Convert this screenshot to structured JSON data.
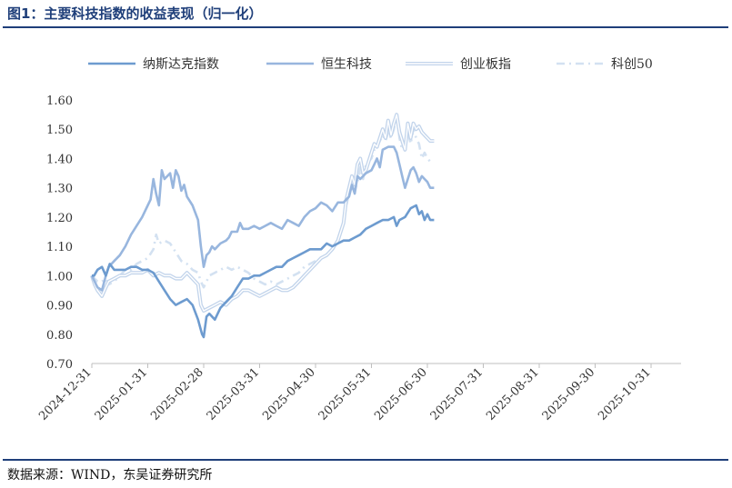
{
  "title": "图1：主要科技指数的收益表现（归一化）",
  "source": "数据来源：WIND，东吴证券研究所",
  "colors": {
    "title": "#1f3f7a",
    "nasdaq": "#6d9bcf",
    "hstech": "#98b6de",
    "chinext": "#c2d4eb",
    "star50": "#d3e1f1"
  },
  "chart_data": {
    "type": "line",
    "title": "",
    "xlabel": "",
    "ylabel": "",
    "ylim": [
      0.7,
      1.6
    ],
    "yticks": [
      "0.70",
      "0.80",
      "0.90",
      "1.00",
      "1.10",
      "1.20",
      "1.30",
      "1.40",
      "1.50",
      "1.60"
    ],
    "xticks": [
      "2024-12-31",
      "2025-01-31",
      "2025-02-28",
      "2025-03-31",
      "2025-04-30",
      "2025-05-31",
      "2025-06-30",
      "2025-07-31",
      "2025-08-31",
      "2025-09-30",
      "2025-10-31"
    ],
    "legend_position": "top",
    "series": [
      {
        "name": "纳斯达克指数",
        "style": "solid",
        "points": [
          [
            0,
            1.0
          ],
          [
            0.04,
            1.0
          ],
          [
            0.1,
            1.02
          ],
          [
            0.18,
            1.03
          ],
          [
            0.25,
            1.0
          ],
          [
            0.32,
            1.04
          ],
          [
            0.4,
            1.02
          ],
          [
            0.5,
            1.02
          ],
          [
            0.6,
            1.02
          ],
          [
            0.7,
            1.03
          ],
          [
            0.8,
            1.03
          ],
          [
            0.9,
            1.02
          ],
          [
            1.0,
            1.02
          ],
          [
            1.1,
            1.01
          ],
          [
            1.2,
            0.98
          ],
          [
            1.3,
            0.95
          ],
          [
            1.4,
            0.92
          ],
          [
            1.5,
            0.9
          ],
          [
            1.6,
            0.91
          ],
          [
            1.7,
            0.92
          ],
          [
            1.8,
            0.9
          ],
          [
            1.9,
            0.85
          ],
          [
            1.97,
            0.8
          ],
          [
            2.0,
            0.79
          ],
          [
            2.05,
            0.86
          ],
          [
            2.1,
            0.87
          ],
          [
            2.2,
            0.85
          ],
          [
            2.3,
            0.89
          ],
          [
            2.4,
            0.91
          ],
          [
            2.5,
            0.93
          ],
          [
            2.6,
            0.96
          ],
          [
            2.7,
            0.99
          ],
          [
            2.8,
            0.99
          ],
          [
            2.9,
            1.0
          ],
          [
            3.0,
            1.0
          ],
          [
            3.1,
            1.01
          ],
          [
            3.2,
            1.02
          ],
          [
            3.3,
            1.03
          ],
          [
            3.4,
            1.03
          ],
          [
            3.5,
            1.05
          ],
          [
            3.6,
            1.06
          ],
          [
            3.7,
            1.07
          ],
          [
            3.8,
            1.08
          ],
          [
            3.9,
            1.09
          ],
          [
            4.0,
            1.09
          ],
          [
            4.1,
            1.09
          ],
          [
            4.2,
            1.11
          ],
          [
            4.3,
            1.1
          ],
          [
            4.4,
            1.11
          ],
          [
            4.5,
            1.12
          ],
          [
            4.6,
            1.12
          ],
          [
            4.7,
            1.13
          ],
          [
            4.8,
            1.14
          ],
          [
            4.9,
            1.16
          ],
          [
            5.0,
            1.17
          ],
          [
            5.1,
            1.18
          ],
          [
            5.2,
            1.19
          ],
          [
            5.3,
            1.19
          ],
          [
            5.4,
            1.2
          ],
          [
            5.45,
            1.17
          ],
          [
            5.5,
            1.19
          ],
          [
            5.6,
            1.2
          ],
          [
            5.7,
            1.23
          ],
          [
            5.8,
            1.24
          ],
          [
            5.85,
            1.21
          ],
          [
            5.9,
            1.22
          ],
          [
            5.95,
            1.19
          ],
          [
            6.0,
            1.21
          ],
          [
            6.05,
            1.19
          ],
          [
            6.12,
            1.19
          ]
        ]
      },
      {
        "name": "恒生科技",
        "style": "solid",
        "points": [
          [
            0,
            1.0
          ],
          [
            0.05,
            0.98
          ],
          [
            0.1,
            0.96
          ],
          [
            0.18,
            0.95
          ],
          [
            0.25,
            1.0
          ],
          [
            0.3,
            1.03
          ],
          [
            0.4,
            1.05
          ],
          [
            0.5,
            1.07
          ],
          [
            0.6,
            1.1
          ],
          [
            0.7,
            1.14
          ],
          [
            0.8,
            1.17
          ],
          [
            0.9,
            1.2
          ],
          [
            1.0,
            1.24
          ],
          [
            1.05,
            1.26
          ],
          [
            1.1,
            1.33
          ],
          [
            1.15,
            1.28
          ],
          [
            1.2,
            1.24
          ],
          [
            1.25,
            1.36
          ],
          [
            1.3,
            1.33
          ],
          [
            1.4,
            1.35
          ],
          [
            1.45,
            1.3
          ],
          [
            1.5,
            1.36
          ],
          [
            1.55,
            1.34
          ],
          [
            1.6,
            1.29
          ],
          [
            1.65,
            1.31
          ],
          [
            1.7,
            1.27
          ],
          [
            1.8,
            1.24
          ],
          [
            1.9,
            1.19
          ],
          [
            1.95,
            1.1
          ],
          [
            2.0,
            1.03
          ],
          [
            2.05,
            1.07
          ],
          [
            2.1,
            1.08
          ],
          [
            2.15,
            1.1
          ],
          [
            2.2,
            1.09
          ],
          [
            2.3,
            1.11
          ],
          [
            2.4,
            1.12
          ],
          [
            2.45,
            1.13
          ],
          [
            2.5,
            1.15
          ],
          [
            2.6,
            1.15
          ],
          [
            2.65,
            1.18
          ],
          [
            2.7,
            1.16
          ],
          [
            2.8,
            1.16
          ],
          [
            2.9,
            1.17
          ],
          [
            3.0,
            1.16
          ],
          [
            3.1,
            1.17
          ],
          [
            3.2,
            1.18
          ],
          [
            3.3,
            1.17
          ],
          [
            3.4,
            1.16
          ],
          [
            3.5,
            1.19
          ],
          [
            3.6,
            1.18
          ],
          [
            3.7,
            1.17
          ],
          [
            3.8,
            1.2
          ],
          [
            3.9,
            1.22
          ],
          [
            4.0,
            1.23
          ],
          [
            4.1,
            1.25
          ],
          [
            4.2,
            1.24
          ],
          [
            4.3,
            1.22
          ],
          [
            4.4,
            1.25
          ],
          [
            4.5,
            1.25
          ],
          [
            4.6,
            1.27
          ],
          [
            4.65,
            1.31
          ],
          [
            4.7,
            1.28
          ],
          [
            4.75,
            1.34
          ],
          [
            4.8,
            1.33
          ],
          [
            4.9,
            1.35
          ],
          [
            5.0,
            1.36
          ],
          [
            5.05,
            1.38
          ],
          [
            5.1,
            1.4
          ],
          [
            5.15,
            1.37
          ],
          [
            5.2,
            1.43
          ],
          [
            5.3,
            1.44
          ],
          [
            5.4,
            1.44
          ],
          [
            5.45,
            1.42
          ],
          [
            5.5,
            1.38
          ],
          [
            5.55,
            1.34
          ],
          [
            5.6,
            1.3
          ],
          [
            5.65,
            1.33
          ],
          [
            5.7,
            1.36
          ],
          [
            5.75,
            1.37
          ],
          [
            5.8,
            1.35
          ],
          [
            5.85,
            1.32
          ],
          [
            5.9,
            1.34
          ],
          [
            5.95,
            1.33
          ],
          [
            6.0,
            1.32
          ],
          [
            6.05,
            1.3
          ],
          [
            6.12,
            1.3
          ]
        ]
      },
      {
        "name": "创业板指",
        "style": "double",
        "points": [
          [
            0,
            1.0
          ],
          [
            0.05,
            0.97
          ],
          [
            0.1,
            0.95
          ],
          [
            0.18,
            0.93
          ],
          [
            0.25,
            0.96
          ],
          [
            0.3,
            0.98
          ],
          [
            0.4,
            0.99
          ],
          [
            0.5,
            1.0
          ],
          [
            0.6,
            1.0
          ],
          [
            0.7,
            1.01
          ],
          [
            0.8,
            1.01
          ],
          [
            0.9,
            1.01
          ],
          [
            1.0,
            1.02
          ],
          [
            1.1,
            1.0
          ],
          [
            1.2,
            1.01
          ],
          [
            1.3,
            1.0
          ],
          [
            1.4,
            1.0
          ],
          [
            1.5,
            0.99
          ],
          [
            1.6,
            0.99
          ],
          [
            1.7,
            1.01
          ],
          [
            1.8,
            0.99
          ],
          [
            1.9,
            0.97
          ],
          [
            1.95,
            0.9
          ],
          [
            2.0,
            0.88
          ],
          [
            2.1,
            0.89
          ],
          [
            2.2,
            0.9
          ],
          [
            2.3,
            0.91
          ],
          [
            2.4,
            0.9
          ],
          [
            2.5,
            0.92
          ],
          [
            2.6,
            0.93
          ],
          [
            2.7,
            0.95
          ],
          [
            2.8,
            0.95
          ],
          [
            2.9,
            0.94
          ],
          [
            3.0,
            0.93
          ],
          [
            3.1,
            0.94
          ],
          [
            3.2,
            0.95
          ],
          [
            3.3,
            0.96
          ],
          [
            3.4,
            0.95
          ],
          [
            3.5,
            0.95
          ],
          [
            3.6,
            0.96
          ],
          [
            3.7,
            0.98
          ],
          [
            3.8,
            1.0
          ],
          [
            3.9,
            1.02
          ],
          [
            4.0,
            1.04
          ],
          [
            4.1,
            1.06
          ],
          [
            4.2,
            1.07
          ],
          [
            4.3,
            1.09
          ],
          [
            4.4,
            1.12
          ],
          [
            4.5,
            1.18
          ],
          [
            4.55,
            1.26
          ],
          [
            4.6,
            1.3
          ],
          [
            4.65,
            1.34
          ],
          [
            4.7,
            1.31
          ],
          [
            4.75,
            1.38
          ],
          [
            4.8,
            1.4
          ],
          [
            4.85,
            1.35
          ],
          [
            4.9,
            1.36
          ],
          [
            5.0,
            1.42
          ],
          [
            5.05,
            1.45
          ],
          [
            5.1,
            1.44
          ],
          [
            5.2,
            1.5
          ],
          [
            5.25,
            1.47
          ],
          [
            5.3,
            1.53
          ],
          [
            5.35,
            1.48
          ],
          [
            5.4,
            1.52
          ],
          [
            5.45,
            1.55
          ],
          [
            5.5,
            1.49
          ],
          [
            5.55,
            1.46
          ],
          [
            5.6,
            1.43
          ],
          [
            5.65,
            1.52
          ],
          [
            5.7,
            1.47
          ],
          [
            5.75,
            1.52
          ],
          [
            5.8,
            1.5
          ],
          [
            5.85,
            1.51
          ],
          [
            5.9,
            1.49
          ],
          [
            5.95,
            1.48
          ],
          [
            6.0,
            1.47
          ],
          [
            6.05,
            1.46
          ],
          [
            6.12,
            1.46
          ]
        ]
      },
      {
        "name": "科创50",
        "style": "dashdot",
        "points": [
          [
            0,
            1.0
          ],
          [
            0.05,
            0.99
          ],
          [
            0.1,
            0.98
          ],
          [
            0.18,
            0.98
          ],
          [
            0.25,
            0.99
          ],
          [
            0.3,
            0.97
          ],
          [
            0.4,
            0.98
          ],
          [
            0.5,
            1.0
          ],
          [
            0.6,
            1.02
          ],
          [
            0.7,
            1.02
          ],
          [
            0.8,
            1.04
          ],
          [
            0.9,
            1.05
          ],
          [
            1.0,
            1.06
          ],
          [
            1.1,
            1.09
          ],
          [
            1.15,
            1.14
          ],
          [
            1.2,
            1.11
          ],
          [
            1.3,
            1.12
          ],
          [
            1.4,
            1.11
          ],
          [
            1.5,
            1.08
          ],
          [
            1.6,
            1.05
          ],
          [
            1.7,
            1.04
          ],
          [
            1.8,
            1.02
          ],
          [
            1.9,
            1.01
          ],
          [
            1.95,
            0.98
          ],
          [
            2.0,
            0.96
          ],
          [
            2.1,
            1.0
          ],
          [
            2.2,
            1.01
          ],
          [
            2.3,
            1.02
          ],
          [
            2.4,
            1.03
          ],
          [
            2.5,
            1.02
          ],
          [
            2.6,
            1.03
          ],
          [
            2.7,
            1.02
          ],
          [
            2.8,
            1.01
          ],
          [
            2.9,
            0.99
          ],
          [
            3.0,
            0.98
          ],
          [
            3.1,
            0.97
          ],
          [
            3.2,
            0.98
          ],
          [
            3.3,
            0.97
          ],
          [
            3.4,
            0.98
          ],
          [
            3.5,
            0.99
          ],
          [
            3.6,
            1.0
          ],
          [
            3.7,
            1.01
          ],
          [
            3.8,
            1.03
          ],
          [
            3.9,
            1.04
          ],
          [
            4.0,
            1.05
          ],
          [
            4.1,
            1.06
          ],
          [
            4.2,
            1.07
          ],
          [
            4.3,
            1.09
          ],
          [
            4.4,
            1.12
          ],
          [
            4.5,
            1.18
          ],
          [
            4.55,
            1.24
          ],
          [
            4.6,
            1.28
          ],
          [
            4.65,
            1.3
          ],
          [
            4.7,
            1.29
          ],
          [
            4.75,
            1.32
          ],
          [
            4.8,
            1.37
          ],
          [
            4.85,
            1.33
          ],
          [
            4.9,
            1.38
          ],
          [
            5.0,
            1.4
          ],
          [
            5.05,
            1.43
          ],
          [
            5.1,
            1.44
          ],
          [
            5.2,
            1.48
          ],
          [
            5.25,
            1.46
          ],
          [
            5.3,
            1.49
          ],
          [
            5.35,
            1.47
          ],
          [
            5.4,
            1.5
          ],
          [
            5.45,
            1.55
          ],
          [
            5.5,
            1.47
          ],
          [
            5.55,
            1.43
          ],
          [
            5.6,
            1.45
          ],
          [
            5.65,
            1.49
          ],
          [
            5.7,
            1.45
          ],
          [
            5.75,
            1.5
          ],
          [
            5.8,
            1.47
          ],
          [
            5.85,
            1.45
          ],
          [
            5.9,
            1.4
          ],
          [
            5.95,
            1.42
          ],
          [
            6.0,
            1.4
          ],
          [
            6.05,
            1.39
          ],
          [
            6.12,
            1.39
          ]
        ]
      }
    ]
  }
}
